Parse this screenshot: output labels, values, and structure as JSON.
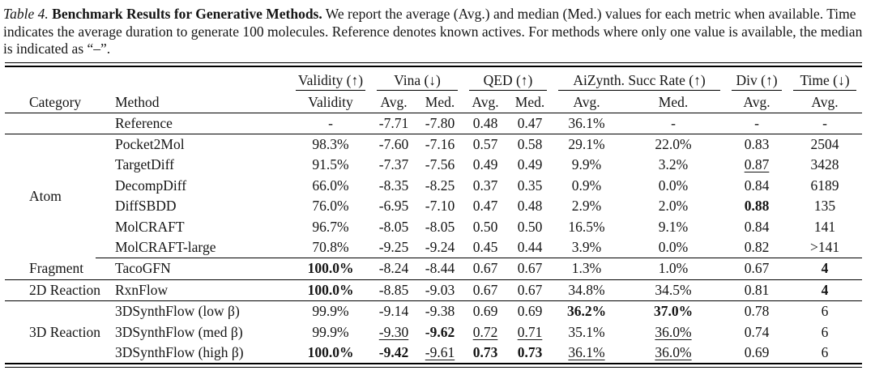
{
  "caption": {
    "label": "Table 4.",
    "title": "Benchmark Results for Generative Methods.",
    "body": "We report the average (Avg.) and median (Med.) values for each metric when available. Time indicates the average duration to generate 100 molecules. Reference denotes known actives. For methods where only one value is available, the median is indicated as “–”."
  },
  "header": {
    "category": "Category",
    "method": "Method",
    "groups": [
      {
        "label": "Validity (↑)",
        "subs": [
          "Validity"
        ]
      },
      {
        "label": "Vina (↓)",
        "subs": [
          "Avg.",
          "Med."
        ]
      },
      {
        "label": "QED (↑)",
        "subs": [
          "Avg.",
          "Med."
        ]
      },
      {
        "label": "AiZynth. Succ Rate (↑)",
        "subs": [
          "Avg.",
          "Med."
        ]
      },
      {
        "label": "Div (↑)",
        "subs": [
          "Avg."
        ]
      },
      {
        "label": "Time (↓)",
        "subs": [
          "Avg."
        ]
      }
    ]
  },
  "rows": [
    {
      "category": "",
      "method": "Reference",
      "values": [
        "-",
        "-7.71",
        "-7.80",
        "0.48",
        "0.47",
        "36.1%",
        "-",
        "-",
        "-"
      ]
    },
    {
      "category": "Atom",
      "method": "Pocket2Mol",
      "values": [
        "98.3%",
        "-7.60",
        "-7.16",
        "0.57",
        "0.58",
        "29.1%",
        "22.0%",
        "0.83",
        "2504"
      ]
    },
    {
      "method": "TargetDiff",
      "values": [
        "91.5%",
        "-7.37",
        "-7.56",
        "0.49",
        "0.49",
        "9.9%",
        "3.2%",
        "0.87",
        "3428"
      ]
    },
    {
      "method": "DecompDiff",
      "values": [
        "66.0%",
        "-8.35",
        "-8.25",
        "0.37",
        "0.35",
        "0.9%",
        "0.0%",
        "0.84",
        "6189"
      ]
    },
    {
      "method": "DiffSBDD",
      "values": [
        "76.0%",
        "-6.95",
        "-7.10",
        "0.47",
        "0.48",
        "2.9%",
        "2.0%",
        "0.88",
        "135"
      ]
    },
    {
      "method": "MolCRAFT",
      "values": [
        "96.7%",
        "-8.05",
        "-8.05",
        "0.50",
        "0.50",
        "16.5%",
        "9.1%",
        "0.84",
        "141"
      ]
    },
    {
      "method": "MolCRAFT-large",
      "values": [
        "70.8%",
        "-9.25",
        "-9.24",
        "0.45",
        "0.44",
        "3.9%",
        "0.0%",
        "0.82",
        ">141"
      ]
    },
    {
      "category": "Fragment",
      "method": "TacoGFN",
      "values": [
        "100.0%",
        "-8.24",
        "-8.44",
        "0.67",
        "0.67",
        "1.3%",
        "1.0%",
        "0.67",
        "4"
      ]
    },
    {
      "category": "2D Reaction",
      "method": "RxnFlow",
      "values": [
        "100.0%",
        "-8.85",
        "-9.03",
        "0.67",
        "0.67",
        "34.8%",
        "34.5%",
        "0.81",
        "4"
      ]
    },
    {
      "category": "3D Reaction",
      "method": "3DSynthFlow (low β)",
      "values": [
        "99.9%",
        "-9.14",
        "-9.38",
        "0.69",
        "0.69",
        "36.2%",
        "37.0%",
        "0.78",
        "6"
      ]
    },
    {
      "method": "3DSynthFlow (med β)",
      "values": [
        "99.9%",
        "-9.30",
        "-9.62",
        "0.72",
        "0.71",
        "35.1%",
        "36.0%",
        "0.74",
        "6"
      ]
    },
    {
      "method": "3DSynthFlow (high β)",
      "values": [
        "100.0%",
        "-9.42",
        "-9.61",
        "0.73",
        "0.73",
        "36.1%",
        "36.0%",
        "0.69",
        "6"
      ]
    }
  ]
}
